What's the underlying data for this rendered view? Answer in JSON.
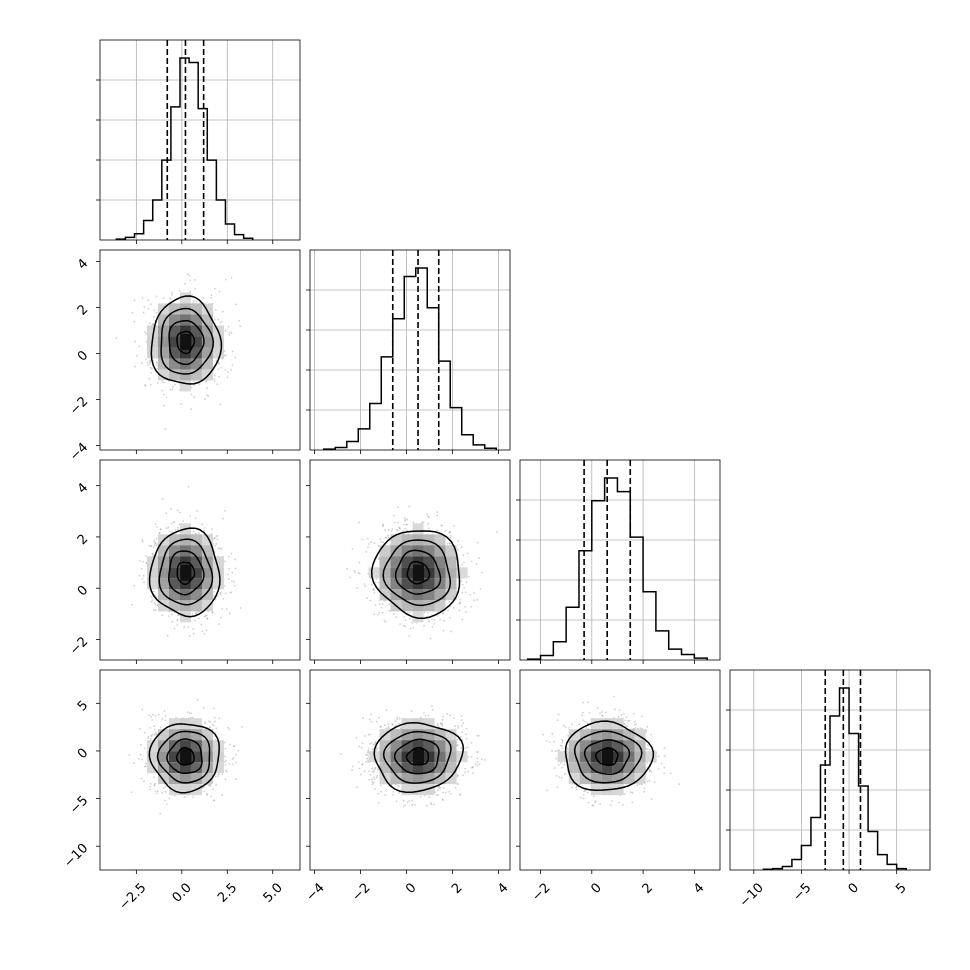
{
  "chart_data": {
    "type": "scatter",
    "title": "",
    "grid": true,
    "parameters": [
      {
        "range": [
          -4.5,
          6.5
        ],
        "mean": 0.2,
        "sd": 0.95,
        "quantiles": [
          -0.8,
          0.2,
          1.2
        ],
        "ticks": [
          -2.5,
          0.0,
          2.5,
          5.0
        ],
        "tick_labels": [
          "−2.5",
          "0.0",
          "2.5",
          "5.0"
        ]
      },
      {
        "range": [
          -4.2,
          4.5
        ],
        "mean": 0.5,
        "sd": 0.95,
        "quantiles": [
          -0.6,
          0.5,
          1.4
        ],
        "ticks": [
          -4,
          -2,
          0,
          2,
          4
        ],
        "tick_labels": [
          "−4",
          "−2",
          "0",
          "2",
          "4"
        ]
      },
      {
        "range": [
          -2.8,
          5.0
        ],
        "mean": 0.6,
        "sd": 0.85,
        "quantiles": [
          -0.3,
          0.6,
          1.5
        ],
        "ticks": [
          -2,
          0,
          2,
          4
        ],
        "tick_labels": [
          "−2",
          "0",
          "2",
          "4"
        ]
      },
      {
        "range": [
          -12.5,
          8.5
        ],
        "mean": -0.6,
        "sd": 1.8,
        "quantiles": [
          -2.5,
          -0.6,
          1.2
        ],
        "ticks": [
          -10,
          -5,
          0,
          5
        ],
        "tick_labels": [
          "−10",
          "−5",
          "0",
          "5"
        ]
      }
    ],
    "histograms": [
      {
        "parameter": 0,
        "bin_edges": [
          -3.6,
          -3.1,
          -2.6,
          -2.1,
          -1.6,
          -1.1,
          -0.6,
          -0.1,
          0.4,
          0.9,
          1.4,
          1.9,
          2.4,
          2.9,
          3.4,
          3.9
        ],
        "counts": [
          1,
          3,
          7,
          22,
          45,
          90,
          150,
          205,
          200,
          148,
          90,
          45,
          18,
          6,
          2
        ]
      },
      {
        "parameter": 1,
        "bin_edges": [
          -3.6,
          -3.1,
          -2.6,
          -2.1,
          -1.6,
          -1.1,
          -0.6,
          -0.1,
          0.4,
          0.9,
          1.4,
          1.9,
          2.4,
          2.9,
          3.4,
          3.9
        ],
        "counts": [
          1,
          3,
          10,
          25,
          55,
          110,
          155,
          205,
          215,
          168,
          105,
          50,
          18,
          6,
          2
        ]
      },
      {
        "parameter": 2,
        "bin_edges": [
          -2.5,
          -2.0,
          -1.5,
          -1.0,
          -0.5,
          0.0,
          0.5,
          1.0,
          1.5,
          2.0,
          2.5,
          3.0,
          3.5,
          4.0,
          4.5
        ],
        "counts": [
          1,
          5,
          20,
          58,
          120,
          175,
          200,
          185,
          135,
          75,
          32,
          12,
          6,
          2
        ]
      },
      {
        "parameter": 3,
        "bin_edges": [
          -9.0,
          -8.0,
          -7.0,
          -6.0,
          -5.0,
          -4.0,
          -3.0,
          -2.0,
          -1.0,
          0.0,
          1.0,
          2.0,
          3.0,
          4.0,
          5.0,
          6.0
        ],
        "counts": [
          1,
          2,
          5,
          15,
          35,
          75,
          150,
          220,
          260,
          195,
          120,
          55,
          22,
          8,
          2
        ]
      }
    ],
    "panels_2d": [
      {
        "x": 0,
        "y": 1,
        "mean": [
          0.2,
          0.5
        ],
        "sd": [
          0.95,
          0.95
        ],
        "rho": 0.0
      },
      {
        "x": 0,
        "y": 2,
        "mean": [
          0.2,
          0.6
        ],
        "sd": [
          0.95,
          0.85
        ],
        "rho": 0.0
      },
      {
        "x": 1,
        "y": 2,
        "mean": [
          0.5,
          0.6
        ],
        "sd": [
          0.95,
          0.85
        ],
        "rho": -0.05
      },
      {
        "x": 0,
        "y": 3,
        "mean": [
          0.2,
          -0.6
        ],
        "sd": [
          0.95,
          1.8
        ],
        "rho": 0.0
      },
      {
        "x": 1,
        "y": 3,
        "mean": [
          0.5,
          -0.6
        ],
        "sd": [
          0.95,
          1.8
        ],
        "rho": 0.05
      },
      {
        "x": 2,
        "y": 3,
        "mean": [
          0.6,
          -0.6
        ],
        "sd": [
          0.85,
          1.8
        ],
        "rho": 0.0
      }
    ],
    "contour_levels_sigma": [
      0.5,
      1.0,
      1.5,
      2.0
    ]
  }
}
